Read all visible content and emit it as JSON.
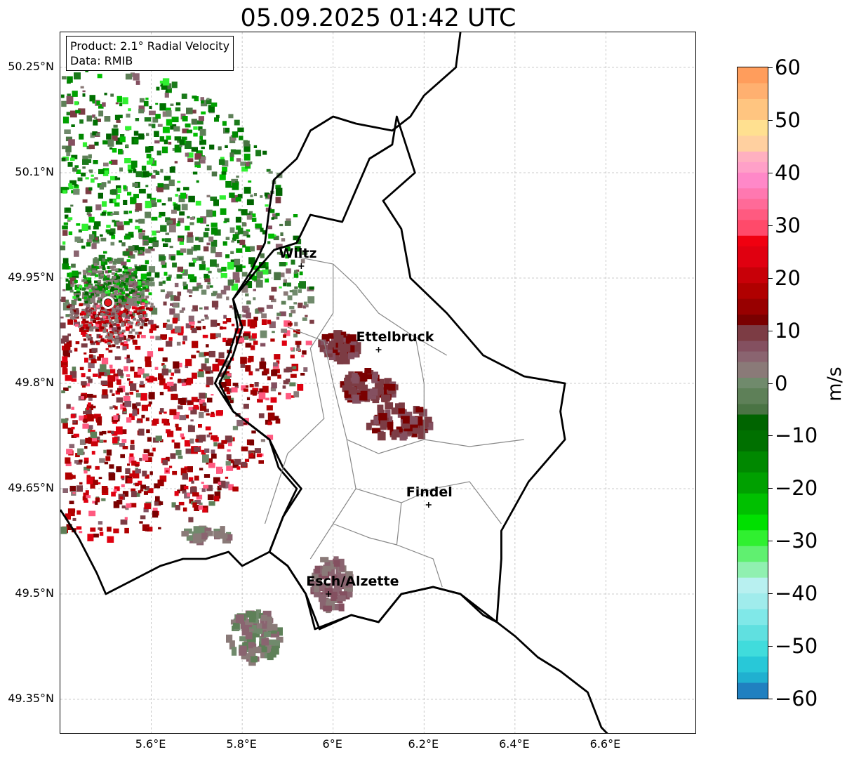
{
  "title": "05.09.2025 01:42 UTC",
  "info_box": {
    "product": "Product: 2.1° Radial Velocity",
    "data_source": "Data: RMIB"
  },
  "axes": {
    "lat_ticks": [
      "50.25°N",
      "50.1°N",
      "49.95°N",
      "49.8°N",
      "49.65°N",
      "49.5°N",
      "49.35°N"
    ],
    "lon_ticks": [
      "5.6°E",
      "5.8°E",
      "6°E",
      "6.2°E",
      "6.4°E",
      "6.6°E"
    ],
    "lon_range": [
      5.4,
      6.8
    ],
    "lat_range": [
      49.3,
      50.3
    ]
  },
  "cities": [
    {
      "name": "Wiltz",
      "lon": 5.93,
      "lat": 49.967
    },
    {
      "name": "Ettelbruck",
      "lon": 6.1,
      "lat": 49.848
    },
    {
      "name": "Findel",
      "lon": 6.21,
      "lat": 49.627
    },
    {
      "name": "Esch/Alzette",
      "lon": 5.99,
      "lat": 49.5
    }
  ],
  "radar_site": {
    "lon": 5.505,
    "lat": 49.915,
    "color": "#e31a1c"
  },
  "colorbar": {
    "label": "m/s",
    "min": -60,
    "max": 60,
    "ticks": [
      "60",
      "50",
      "40",
      "30",
      "20",
      "10",
      "0",
      "−10",
      "−20",
      "−30",
      "−40",
      "−50",
      "−60"
    ],
    "tick_values": [
      60,
      50,
      40,
      30,
      20,
      10,
      0,
      -10,
      -20,
      -30,
      -40,
      -50,
      -60
    ],
    "bands": [
      {
        "from": 57,
        "to": 60,
        "color": "#ff9d5c"
      },
      {
        "from": 54,
        "to": 57,
        "color": "#ffb070"
      },
      {
        "from": 50,
        "to": 54,
        "color": "#ffc580"
      },
      {
        "from": 47,
        "to": 50,
        "color": "#ffe090"
      },
      {
        "from": 44,
        "to": 47,
        "color": "#ffd0a0"
      },
      {
        "from": 42,
        "to": 44,
        "color": "#ffb0c0"
      },
      {
        "from": 40,
        "to": 42,
        "color": "#ffa0c8"
      },
      {
        "from": 37,
        "to": 40,
        "color": "#ff88c8"
      },
      {
        "from": 35,
        "to": 37,
        "color": "#ff78b0"
      },
      {
        "from": 33,
        "to": 35,
        "color": "#ff6a98"
      },
      {
        "from": 31,
        "to": 33,
        "color": "#ff5a80"
      },
      {
        "from": 28,
        "to": 31,
        "color": "#ff4a6a"
      },
      {
        "from": 26,
        "to": 28,
        "color": "#f00010"
      },
      {
        "from": 22,
        "to": 26,
        "color": "#e00010"
      },
      {
        "from": 19,
        "to": 22,
        "color": "#c80008"
      },
      {
        "from": 16,
        "to": 19,
        "color": "#b00000"
      },
      {
        "from": 13,
        "to": 16,
        "color": "#980000"
      },
      {
        "from": 11,
        "to": 13,
        "color": "#7a0000"
      },
      {
        "from": 8,
        "to": 11,
        "color": "#7c3c44"
      },
      {
        "from": 6,
        "to": 8,
        "color": "#845060"
      },
      {
        "from": 4,
        "to": 6,
        "color": "#8a6470"
      },
      {
        "from": 1,
        "to": 4,
        "color": "#8a7a78"
      },
      {
        "from": -1,
        "to": 1,
        "color": "#708a6c"
      },
      {
        "from": -4,
        "to": -1,
        "color": "#5e8058"
      },
      {
        "from": -6,
        "to": -4,
        "color": "#4a7444"
      },
      {
        "from": -9,
        "to": -6,
        "color": "#006400"
      },
      {
        "from": -13,
        "to": -9,
        "color": "#007000"
      },
      {
        "from": -17,
        "to": -13,
        "color": "#008800"
      },
      {
        "from": -21,
        "to": -17,
        "color": "#00a000"
      },
      {
        "from": -25,
        "to": -21,
        "color": "#00c000"
      },
      {
        "from": -28,
        "to": -25,
        "color": "#00e000"
      },
      {
        "from": -31,
        "to": -28,
        "color": "#30f030"
      },
      {
        "from": -34,
        "to": -31,
        "color": "#60f070"
      },
      {
        "from": -37,
        "to": -34,
        "color": "#90f0b0"
      },
      {
        "from": -40,
        "to": -37,
        "color": "#b8f0f0"
      },
      {
        "from": -43,
        "to": -40,
        "color": "#a0ecec"
      },
      {
        "from": -46,
        "to": -43,
        "color": "#80e8e8"
      },
      {
        "from": -49,
        "to": -46,
        "color": "#60e0e0"
      },
      {
        "from": -52,
        "to": -49,
        "color": "#40dcdc"
      },
      {
        "from": -55,
        "to": -52,
        "color": "#28c8d8"
      },
      {
        "from": -57,
        "to": -55,
        "color": "#20b0d0"
      },
      {
        "from": -60,
        "to": -57,
        "color": "#2080c0"
      }
    ]
  }
}
